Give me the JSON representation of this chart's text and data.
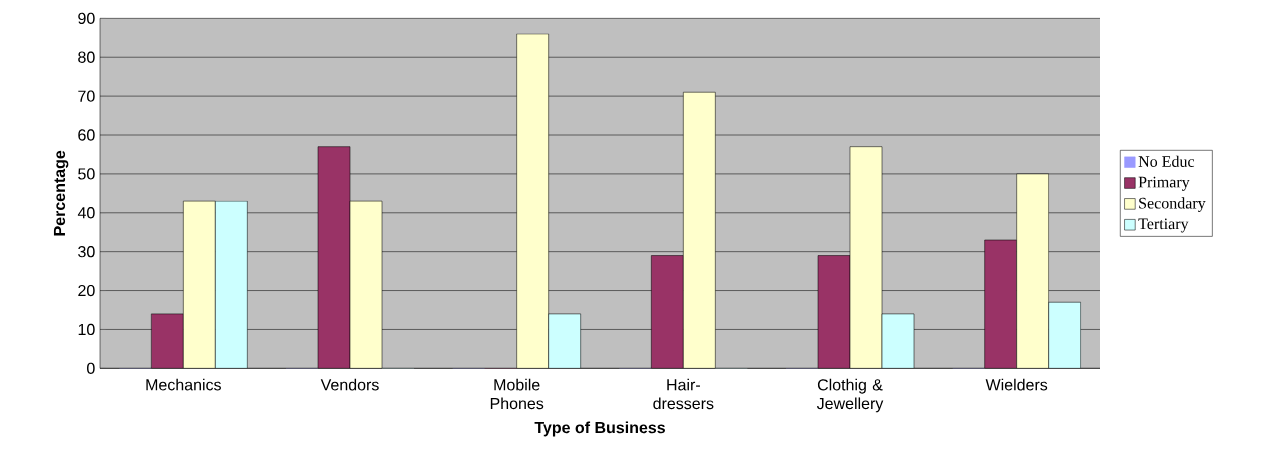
{
  "chart_data": {
    "type": "bar",
    "xlabel": "Type of Business",
    "ylabel": "Percentage",
    "categories": [
      "Mechanics",
      "Vendors",
      "Mobile Phones",
      "Hair-dressers",
      "Clothig & Jewellery",
      "Wielders"
    ],
    "series": [
      {
        "name": "No Educ",
        "color": "#9999ff",
        "values": [
          0,
          0,
          0,
          0,
          0,
          0
        ]
      },
      {
        "name": "Primary",
        "color": "#993366",
        "values": [
          14,
          57,
          0,
          29,
          29,
          33
        ]
      },
      {
        "name": "Secondary",
        "color": "#ffffcc",
        "values": [
          43,
          43,
          86,
          71,
          57,
          50
        ]
      },
      {
        "name": "Tertiary",
        "color": "#ccffff",
        "values": [
          43,
          0,
          14,
          0,
          14,
          17
        ]
      }
    ],
    "ylim": [
      0,
      90
    ],
    "yticks": [
      0,
      10,
      20,
      30,
      40,
      50,
      60,
      70,
      80,
      90
    ],
    "grid": "y",
    "legend": "right"
  }
}
